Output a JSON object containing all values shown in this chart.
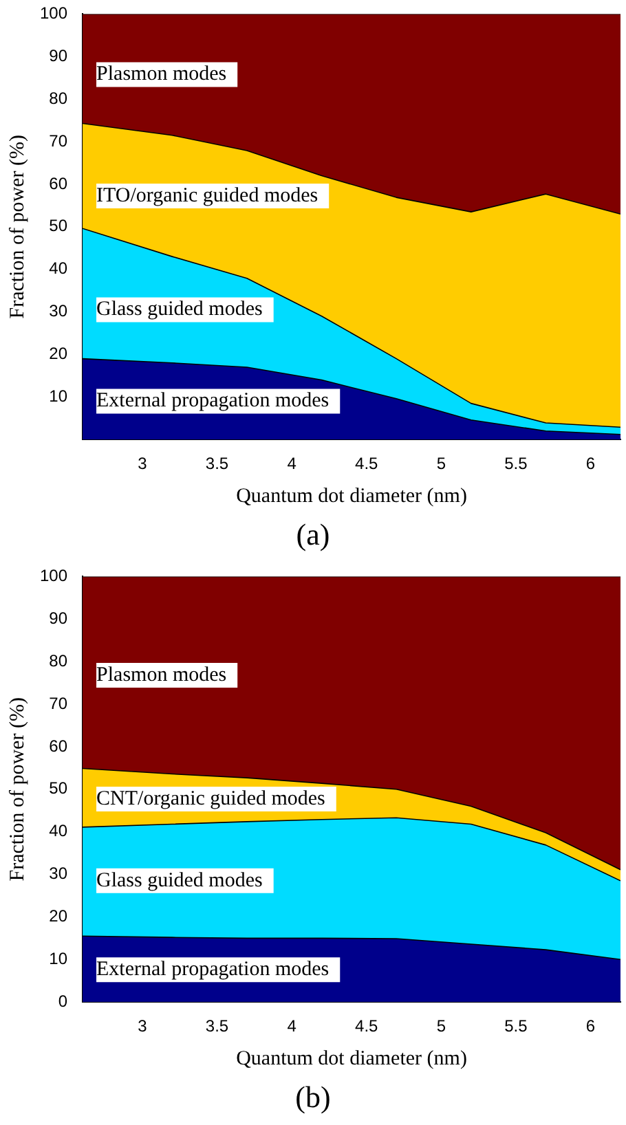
{
  "chart_data": [
    {
      "type": "area",
      "stacked": true,
      "xlabel": "Quantum dot diameter (nm)",
      "ylabel": "Fraction of power (%)",
      "annotations": [
        "(a)"
      ],
      "x": [
        2.6,
        3.2,
        3.7,
        4.2,
        4.7,
        5.2,
        5.7,
        6.2
      ],
      "series": [
        {
          "name": "External propagation modes",
          "color": "#00008b",
          "values": [
            19,
            18,
            17,
            14,
            9.6,
            4.6,
            2,
            1.2
          ]
        },
        {
          "name": "Glass guided modes",
          "color": "#00dcff",
          "values": [
            30.6,
            25,
            20.9,
            15,
            9.4,
            3.9,
            1.9,
            1.7
          ]
        },
        {
          "name": "ITO/organic guided modes",
          "color": "#ffcc00",
          "values": [
            24.7,
            28.5,
            30,
            33,
            37.9,
            45,
            53.8,
            50.1
          ]
        },
        {
          "name": "Plasmon modes",
          "color": "#800000",
          "values": [
            25.7,
            28.5,
            32.1,
            38,
            43.1,
            46.5,
            42.3,
            47
          ]
        }
      ],
      "xlim": [
        2.6,
        6.2
      ],
      "xticks": [
        3,
        3.5,
        4,
        4.5,
        5,
        5.5,
        6
      ],
      "ylim": [
        0,
        100
      ],
      "yticks": [
        10,
        20,
        30,
        40,
        50,
        60,
        70,
        80,
        90,
        100
      ],
      "grid": false,
      "legend": false
    },
    {
      "type": "area",
      "stacked": true,
      "xlabel": "Quantum dot diameter (nm)",
      "ylabel": "Fraction of power (%)",
      "annotations": [
        "(b)"
      ],
      "x": [
        2.6,
        3.2,
        3.7,
        4.2,
        4.7,
        5.2,
        5.7,
        6.2
      ],
      "series": [
        {
          "name": "External propagation modes",
          "color": "#00008b",
          "values": [
            15.5,
            15.2,
            15,
            15,
            14.9,
            13.6,
            12.3,
            10
          ]
        },
        {
          "name": "Glass guided modes",
          "color": "#00dcff",
          "values": [
            25.6,
            26.6,
            27.4,
            27.9,
            28.4,
            28.2,
            24.6,
            18.5
          ]
        },
        {
          "name": "CNT/organic guided modes",
          "color": "#ffcc00",
          "values": [
            13.8,
            11.8,
            10.3,
            8.5,
            6.7,
            4.2,
            2.9,
            2.6
          ]
        },
        {
          "name": "Plasmon modes",
          "color": "#800000",
          "values": [
            45.1,
            46.4,
            47.3,
            48.6,
            50,
            54,
            60.2,
            68.9
          ]
        }
      ],
      "xlim": [
        2.6,
        6.2
      ],
      "xticks": [
        3,
        3.5,
        4,
        4.5,
        5,
        5.5,
        6
      ],
      "ylim": [
        0,
        100
      ],
      "yticks": [
        0,
        10,
        20,
        30,
        40,
        50,
        60,
        70,
        80,
        90,
        100
      ],
      "grid": false,
      "legend": false
    }
  ]
}
